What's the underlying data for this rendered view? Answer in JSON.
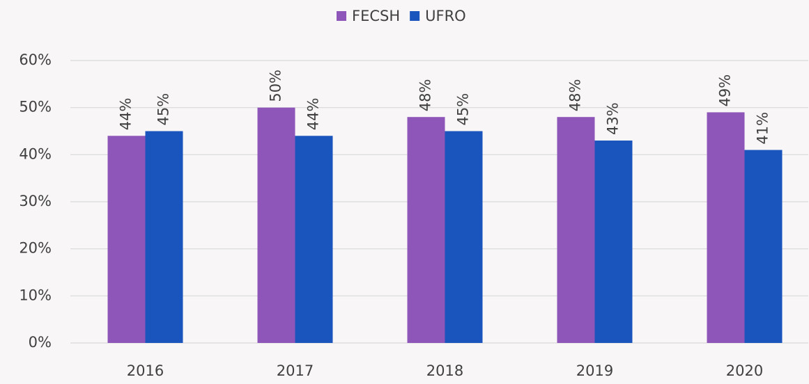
{
  "chart_data": {
    "type": "bar",
    "categories": [
      "2016",
      "2017",
      "2018",
      "2019",
      "2020"
    ],
    "series": [
      {
        "name": "FECSH",
        "color": "#8e56b8",
        "values": [
          44,
          50,
          48,
          48,
          49
        ],
        "value_labels": [
          "44%",
          "50%",
          "48%",
          "48%",
          "49%"
        ]
      },
      {
        "name": "UFRO",
        "color": "#1a54bd",
        "values": [
          45,
          44,
          45,
          43,
          41
        ],
        "value_labels": [
          "45%",
          "44%",
          "45%",
          "43%",
          "41%"
        ]
      }
    ],
    "ylim": [
      0,
      60
    ],
    "yticks": [
      {
        "value": 0,
        "label": "0%"
      },
      {
        "value": 10,
        "label": "10%"
      },
      {
        "value": 20,
        "label": "20%"
      },
      {
        "value": 30,
        "label": "30%"
      },
      {
        "value": 40,
        "label": "40%"
      },
      {
        "value": 50,
        "label": "50%"
      },
      {
        "value": 60,
        "label": "60%"
      }
    ],
    "grid": true,
    "legend": "top"
  }
}
